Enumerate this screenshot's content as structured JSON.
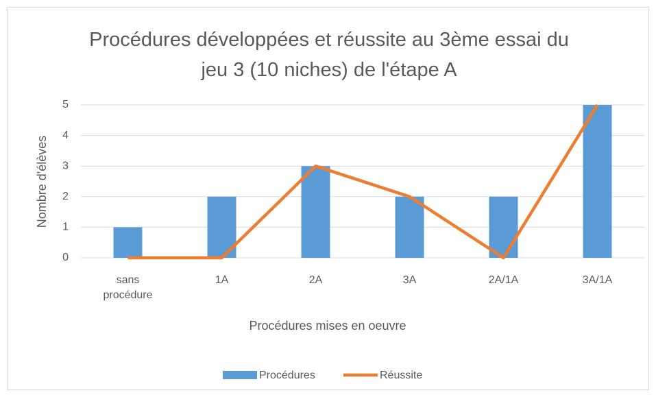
{
  "chart_data": {
    "type": "bar",
    "title": "Procédures développées et réussite au 3ème essai du jeu 3 (10 niches) de l'étape A",
    "x_label": "Procédures mises en oeuvre",
    "y_label": "Nombre d'élèves",
    "categories": [
      "sans procédure",
      "1A",
      "2A",
      "3A",
      "2A/1A",
      "3A/1A"
    ],
    "series": [
      {
        "name": "Procédures",
        "type": "bar",
        "color": "#5b9bd5",
        "values": [
          1,
          2,
          3,
          2,
          2,
          5
        ]
      },
      {
        "name": "Réussite",
        "type": "line",
        "color": "#ed7d31",
        "values": [
          0,
          0,
          3,
          2,
          0,
          5
        ]
      }
    ],
    "ylim": [
      0,
      5
    ],
    "yticks": [
      0,
      1,
      2,
      3,
      4,
      5
    ],
    "grid": true,
    "legend": "bottom"
  }
}
